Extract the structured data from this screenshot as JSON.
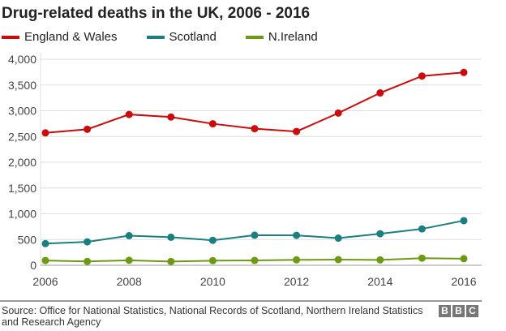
{
  "chart_data": {
    "type": "line",
    "title": "Drug-related deaths in the UK, 2006 - 2016",
    "x": [
      2006,
      2007,
      2008,
      2009,
      2010,
      2011,
      2012,
      2013,
      2014,
      2015,
      2016
    ],
    "x_ticks": [
      "2006",
      "2008",
      "2010",
      "2012",
      "2014",
      "2016"
    ],
    "y_ticks": [
      "0",
      "500",
      "1,000",
      "1,500",
      "2,000",
      "2,500",
      "3,000",
      "3,500",
      "4,000"
    ],
    "ylim": [
      0,
      4000
    ],
    "grid": "horizontal",
    "legend": "top",
    "series": [
      {
        "name": "England & Wales",
        "color": "#cc0a0a",
        "values": [
          2570,
          2640,
          2928,
          2878,
          2747,
          2652,
          2597,
          2955,
          3346,
          3674,
          3744
        ]
      },
      {
        "name": "Scotland",
        "color": "#1a7f80",
        "values": [
          421,
          455,
          574,
          545,
          485,
          584,
          581,
          527,
          613,
          706,
          867
        ]
      },
      {
        "name": "N.Ireland",
        "color": "#6c9a11",
        "values": [
          93,
          75,
          97,
          73,
          90,
          94,
          106,
          110,
          105,
          138,
          127
        ]
      }
    ]
  },
  "source": "Source: Office for National Statistics, National Records of Scotland, Northern Ireland Statistics and Research Agency",
  "logo": [
    "B",
    "B",
    "C"
  ]
}
